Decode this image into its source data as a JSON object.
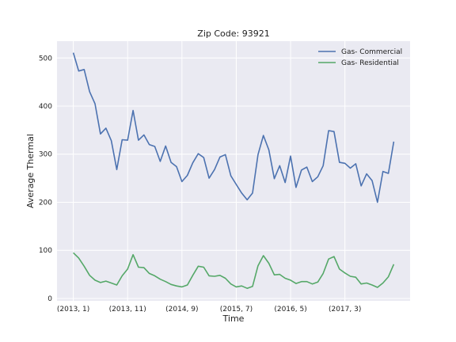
{
  "chart_data": {
    "type": "line",
    "title": "Zip Code: 93921",
    "xlabel": "Time",
    "ylabel": "Average Thermal",
    "x_tick_labels": [
      "(2013, 1)",
      "(2013, 11)",
      "(2014, 9)",
      "(2015, 7)",
      "(2016, 5)",
      "(2017, 3)"
    ],
    "x_tick_positions": [
      0,
      10,
      20,
      30,
      40,
      50
    ],
    "xlim": [
      -3,
      62
    ],
    "y_ticks": [
      0,
      100,
      200,
      300,
      400,
      500
    ],
    "ylim": [
      -5,
      535
    ],
    "grid": true,
    "legend_position": "top-right",
    "series": [
      {
        "name": "Gas- Commercial",
        "color": "#4c72b0",
        "values": [
          511,
          473,
          476,
          430,
          405,
          342,
          354,
          328,
          268,
          330,
          329,
          391,
          329,
          340,
          320,
          316,
          285,
          317,
          283,
          274,
          243,
          256,
          282,
          301,
          293,
          250,
          268,
          294,
          299,
          255,
          237,
          219,
          205,
          219,
          299,
          339,
          309,
          249,
          276,
          241,
          296,
          231,
          267,
          273,
          243,
          253,
          276,
          349,
          347,
          283,
          281,
          271,
          280,
          234,
          259,
          245,
          200,
          264,
          260,
          326
        ]
      },
      {
        "name": "Gas- Residential",
        "color": "#55a868",
        "values": [
          95,
          84,
          67,
          48,
          38,
          33,
          36,
          32,
          28,
          47,
          61,
          91,
          65,
          64,
          52,
          47,
          40,
          35,
          29,
          26,
          24,
          28,
          48,
          67,
          65,
          47,
          46,
          48,
          42,
          30,
          24,
          26,
          21,
          25,
          68,
          89,
          73,
          49,
          50,
          42,
          38,
          31,
          35,
          35,
          30,
          34,
          52,
          82,
          87,
          61,
          53,
          46,
          44,
          30,
          32,
          28,
          23,
          32,
          45,
          71
        ]
      }
    ]
  }
}
